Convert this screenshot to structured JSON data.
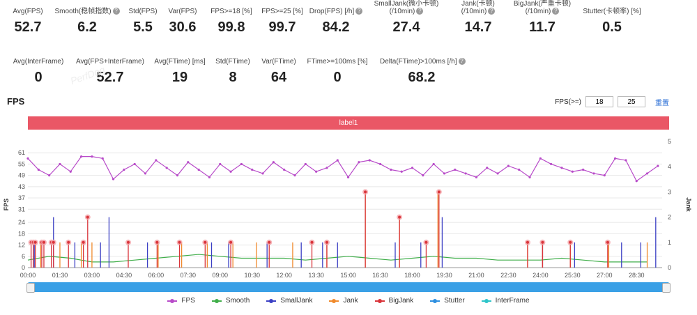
{
  "stats_row1": [
    {
      "label": "Avg(FPS)",
      "value": "52.7",
      "help": false
    },
    {
      "label": "Smooth(稳帧指数)",
      "value": "6.2",
      "help": true
    },
    {
      "label": "Std(FPS)",
      "value": "5.5",
      "help": false
    },
    {
      "label": "Var(FPS)",
      "value": "30.6",
      "help": false
    },
    {
      "label": "FPS>=18 [%]",
      "value": "99.8",
      "help": false
    },
    {
      "label": "FPS>=25 [%]",
      "value": "99.7",
      "help": false
    },
    {
      "label": "Drop(FPS) [/h]",
      "value": "84.2",
      "help": true
    },
    {
      "label": "SmallJank(微小卡顿)\n(/10min)",
      "value": "27.4",
      "help": true
    },
    {
      "label": "Jank(卡顿)\n(/10min)",
      "value": "14.7",
      "help": true
    },
    {
      "label": "BigJank(严重卡顿)\n(/10min)",
      "value": "11.7",
      "help": true
    },
    {
      "label": "Stutter(卡顿率) [%]",
      "value": "0.5",
      "help": false
    }
  ],
  "stats_row2": [
    {
      "label": "Avg(InterFrame)",
      "value": "0",
      "help": false
    },
    {
      "label": "Avg(FPS+InterFrame)",
      "value": "52.7",
      "help": false
    },
    {
      "label": "Avg(FTime) [ms]",
      "value": "19",
      "help": false
    },
    {
      "label": "Std(FTime)",
      "value": "8",
      "help": false
    },
    {
      "label": "Var(FTime)",
      "value": "64",
      "help": false
    },
    {
      "label": "FTime>=100ms [%]",
      "value": "0",
      "help": false
    },
    {
      "label": "Delta(FTime)>100ms [/h]",
      "value": "68.2",
      "help": true
    }
  ],
  "chart_section": {
    "title": "FPS",
    "threshold_label": "FPS(>=)",
    "threshold1": "18",
    "threshold2": "25",
    "reset_label": "重置",
    "segment_label": "label1"
  },
  "colors": {
    "fps": "#b84bc9",
    "smooth": "#3fae49",
    "smalljank": "#3b3fc4",
    "jank": "#f08a2c",
    "bigjank": "#d9343a",
    "stutter": "#2d8fe0",
    "interframe": "#2ec5c9"
  },
  "chart_data": {
    "type": "line",
    "title": "FPS",
    "ylabel": "FPS",
    "y2label": "Jank",
    "y_ticks": [
      0,
      6,
      12,
      18,
      24,
      31,
      37,
      43,
      49,
      55,
      61
    ],
    "y_range": [
      0,
      67
    ],
    "y2_ticks": [
      0,
      1,
      2,
      3,
      4,
      5
    ],
    "y2_range": [
      0,
      5
    ],
    "x_ticks": [
      "00:00",
      "01:30",
      "03:00",
      "04:30",
      "06:00",
      "07:30",
      "09:00",
      "10:30",
      "12:00",
      "13:30",
      "15:00",
      "16:30",
      "18:00",
      "19:30",
      "21:00",
      "22:30",
      "24:00",
      "25:30",
      "27:00",
      "28:30"
    ],
    "x_range_minutes": [
      0,
      29.7
    ],
    "legend": [
      "FPS",
      "Smooth",
      "SmallJank",
      "Jank",
      "BigJank",
      "Stutter",
      "InterFrame"
    ],
    "legend_position": "bottom",
    "series": [
      {
        "name": "FPS",
        "axis": "left",
        "x_min": [
          0,
          0.5,
          1,
          1.5,
          2,
          2.5,
          3,
          3.5,
          4,
          4.5,
          5,
          5.5,
          6,
          6.5,
          7,
          7.5,
          8,
          8.5,
          9,
          9.5,
          10,
          10.5,
          11,
          11.5,
          12,
          12.5,
          13,
          13.5,
          14,
          14.5,
          15,
          15.5,
          16,
          16.5,
          17,
          17.5,
          18,
          18.5,
          19,
          19.5,
          20,
          20.5,
          21,
          21.5,
          22,
          22.5,
          23,
          23.5,
          24,
          24.5,
          25,
          25.5,
          26,
          26.5,
          27,
          27.5,
          28,
          28.5,
          29,
          29.5
        ],
        "values": [
          58,
          52,
          49,
          55,
          51,
          59,
          59,
          58,
          47,
          52,
          55,
          50,
          57,
          53,
          49,
          56,
          52,
          48,
          55,
          51,
          55,
          52,
          50,
          56,
          52,
          49,
          55,
          51,
          53,
          57,
          48,
          56,
          57,
          55,
          52,
          51,
          53,
          49,
          55,
          50,
          52,
          50,
          48,
          53,
          50,
          54,
          52,
          48,
          58,
          55,
          53,
          51,
          52,
          50,
          49,
          58,
          57,
          46,
          50,
          54
        ]
      },
      {
        "name": "Smooth",
        "axis": "left",
        "x_min": [
          0,
          1,
          2,
          3,
          4,
          5,
          6,
          7,
          8,
          9,
          10,
          11,
          12,
          13,
          14,
          15,
          16,
          17,
          18,
          19,
          20,
          21,
          22,
          23,
          24,
          25,
          26,
          27,
          28,
          29
        ],
        "values": [
          4,
          6,
          5,
          3,
          3,
          4,
          5,
          6,
          7,
          6,
          5,
          5,
          5,
          4,
          5,
          6,
          5,
          4,
          5,
          6,
          5,
          5,
          4,
          4,
          4,
          5,
          4,
          3,
          3,
          3
        ]
      },
      {
        "name": "SmallJank",
        "axis": "right",
        "x_min": [
          0.3,
          1.2,
          2.2,
          3.4,
          3.8,
          5.6,
          8.6,
          9.4,
          11.2,
          12.8,
          13.8,
          14.5,
          17.2,
          18.4,
          19.4,
          24.1,
          25.6,
          27.8,
          28.7,
          29.4
        ],
        "values": [
          1,
          2,
          1,
          1,
          2,
          1,
          1,
          1,
          1,
          1,
          1,
          1,
          1,
          1,
          2,
          1,
          1,
          1,
          1,
          2
        ]
      },
      {
        "name": "Jank",
        "axis": "right",
        "x_min": [
          0.6,
          1.5,
          2.5,
          3.0,
          6.1,
          7.2,
          8.4,
          9.6,
          10.7,
          12.4,
          14.0,
          15.8,
          17.4,
          19.2,
          23.4,
          24.1,
          25.4,
          27.2,
          29.0
        ],
        "values": [
          1,
          1,
          1,
          1,
          1,
          1,
          1,
          1,
          1,
          1,
          1,
          3,
          2,
          3,
          1,
          1,
          1,
          1,
          1
        ]
      },
      {
        "name": "BigJank",
        "axis": "right",
        "x_min": [
          0.15,
          0.25,
          0.35,
          0.65,
          0.75,
          1.1,
          1.2,
          1.9,
          2.6,
          2.8,
          4.7,
          6.05,
          7.1,
          8.3,
          9.5,
          11.3,
          13.3,
          14.0,
          15.8,
          17.4,
          18.65,
          19.25,
          23.4,
          24.1,
          25.4,
          27.15
        ],
        "values": [
          1,
          1,
          1,
          1,
          1,
          1,
          1,
          1,
          1,
          2,
          1,
          1,
          1,
          1,
          1,
          1,
          1,
          1,
          3,
          2,
          1,
          3,
          1,
          1,
          1,
          1
        ]
      },
      {
        "name": "Stutter",
        "axis": "right",
        "x_min": [],
        "values": []
      },
      {
        "name": "InterFrame",
        "axis": "right",
        "x_min": [],
        "values": []
      }
    ]
  }
}
